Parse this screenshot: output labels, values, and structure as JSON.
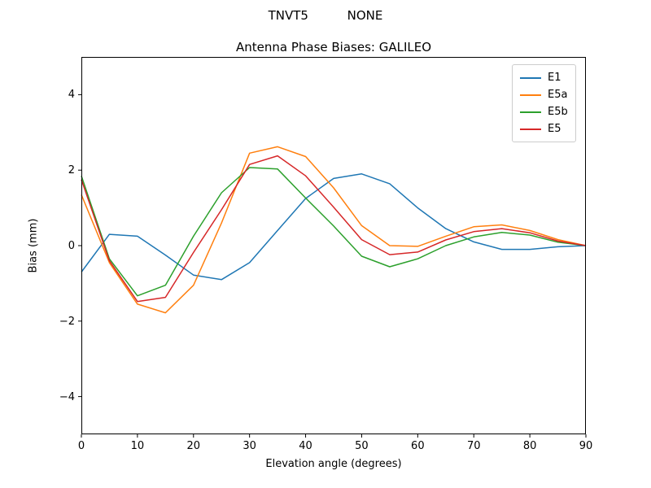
{
  "suptitle": "TNVT5          NONE",
  "chart_data": {
    "type": "line",
    "title": "Antenna Phase Biases: GALILEO",
    "xlabel": "Elevation angle (degrees)",
    "ylabel": "Bias (mm)",
    "xlim": [
      0,
      90
    ],
    "ylim": [
      -5,
      5
    ],
    "x_ticks": [
      0,
      10,
      20,
      30,
      40,
      50,
      60,
      70,
      80,
      90
    ],
    "y_ticks": [
      -4,
      -2,
      0,
      2,
      4
    ],
    "grid": false,
    "legend_position": "upper right",
    "x": [
      0,
      5,
      10,
      15,
      20,
      25,
      30,
      35,
      40,
      45,
      50,
      55,
      60,
      65,
      70,
      75,
      80,
      85,
      90
    ],
    "series": [
      {
        "name": "E1",
        "color": "#1f77b4",
        "values": [
          -0.7,
          0.3,
          0.25,
          -0.25,
          -0.78,
          -0.9,
          -0.45,
          0.4,
          1.25,
          1.78,
          1.9,
          1.64,
          1.0,
          0.45,
          0.1,
          -0.1,
          -0.1,
          -0.03,
          0.0
        ]
      },
      {
        "name": "E5a",
        "color": "#ff7f0e",
        "values": [
          1.35,
          -0.45,
          -1.55,
          -1.78,
          -1.05,
          0.6,
          2.45,
          2.62,
          2.36,
          1.53,
          0.53,
          0.0,
          -0.02,
          0.25,
          0.5,
          0.55,
          0.4,
          0.16,
          0.0
        ]
      },
      {
        "name": "E5b",
        "color": "#2ca02c",
        "values": [
          1.85,
          -0.35,
          -1.33,
          -1.05,
          0.25,
          1.4,
          2.07,
          2.03,
          1.26,
          0.52,
          -0.28,
          -0.56,
          -0.35,
          0.0,
          0.23,
          0.35,
          0.28,
          0.09,
          0.0
        ]
      },
      {
        "name": "E5",
        "color": "#d62728",
        "values": [
          1.75,
          -0.4,
          -1.48,
          -1.37,
          -0.18,
          0.95,
          2.15,
          2.38,
          1.85,
          1.02,
          0.16,
          -0.24,
          -0.17,
          0.15,
          0.37,
          0.45,
          0.34,
          0.12,
          0.0
        ]
      }
    ]
  }
}
